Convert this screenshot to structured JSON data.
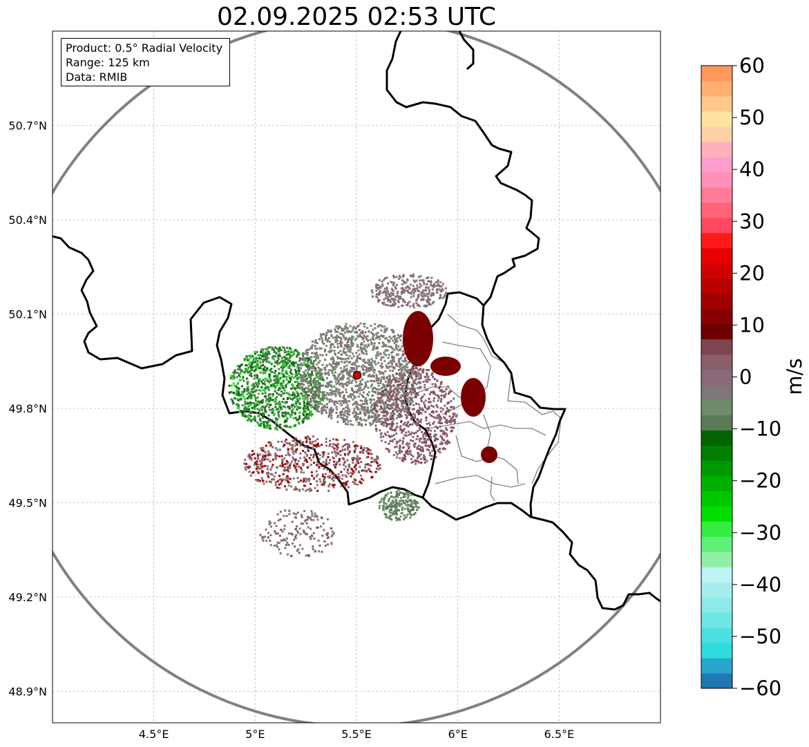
{
  "title": "02.09.2025 02:53 UTC",
  "info_box": {
    "product": "Product: 0.5° Radial Velocity",
    "range": "Range: 125 km",
    "data": "Data: RMIB"
  },
  "map": {
    "lon_range": [
      4.0,
      7.0
    ],
    "lat_range": [
      48.8,
      51.0
    ],
    "lon_ticks": [
      {
        "value": 4.5,
        "label": "4.5°E"
      },
      {
        "value": 5.0,
        "label": "5°E"
      },
      {
        "value": 5.5,
        "label": "5.5°E"
      },
      {
        "value": 6.0,
        "label": "6°E"
      },
      {
        "value": 6.5,
        "label": "6.5°E"
      }
    ],
    "lat_ticks": [
      {
        "value": 50.7,
        "label": "50.7°N"
      },
      {
        "value": 50.4,
        "label": "50.4°N"
      },
      {
        "value": 50.1,
        "label": "50.1°N"
      },
      {
        "value": 49.8,
        "label": "49.8°N"
      },
      {
        "value": 49.5,
        "label": "49.5°N"
      },
      {
        "value": 49.2,
        "label": "49.2°N"
      },
      {
        "value": 48.9,
        "label": "48.9°N"
      }
    ],
    "radar_site": {
      "lon": 5.505,
      "lat": 49.914
    },
    "range_km": 125,
    "grid": true
  },
  "colorbar": {
    "unit": "m/s",
    "min": -60,
    "max": 60,
    "ticks": [
      {
        "value": 60,
        "label": "60"
      },
      {
        "value": 50,
        "label": "50"
      },
      {
        "value": 40,
        "label": "40"
      },
      {
        "value": 30,
        "label": "30"
      },
      {
        "value": 20,
        "label": "20"
      },
      {
        "value": 10,
        "label": "10"
      },
      {
        "value": 0,
        "label": "0"
      },
      {
        "value": -10,
        "label": "−10"
      },
      {
        "value": -20,
        "label": "−20"
      },
      {
        "value": -30,
        "label": "−30"
      },
      {
        "value": -40,
        "label": "−40"
      },
      {
        "value": -50,
        "label": "−50"
      },
      {
        "value": -60,
        "label": "−60"
      }
    ],
    "colors": [
      "#1f77b4",
      "#2aa5cc",
      "#2edcdc",
      "#4de0e0",
      "#6ee6e6",
      "#8ceaea",
      "#a6eeee",
      "#bff2f2",
      "#90f0a8",
      "#60f078",
      "#32ee40",
      "#00e000",
      "#00c800",
      "#00b000",
      "#009800",
      "#007e00",
      "#006400",
      "#5a7a58",
      "#6e8c6a",
      "#807878",
      "#8a6a78",
      "#8a5e6a",
      "#7e4450",
      "#6e0000",
      "#860000",
      "#a00000",
      "#b80000",
      "#d00000",
      "#e80000",
      "#ff1818",
      "#ff4860",
      "#ff6478",
      "#ff7c98",
      "#ff90b8",
      "#ff9ccc",
      "#ffb0b8",
      "#ffd0a8",
      "#ffe4a0",
      "#ffc888",
      "#ffb070",
      "#ff9858"
    ]
  }
}
